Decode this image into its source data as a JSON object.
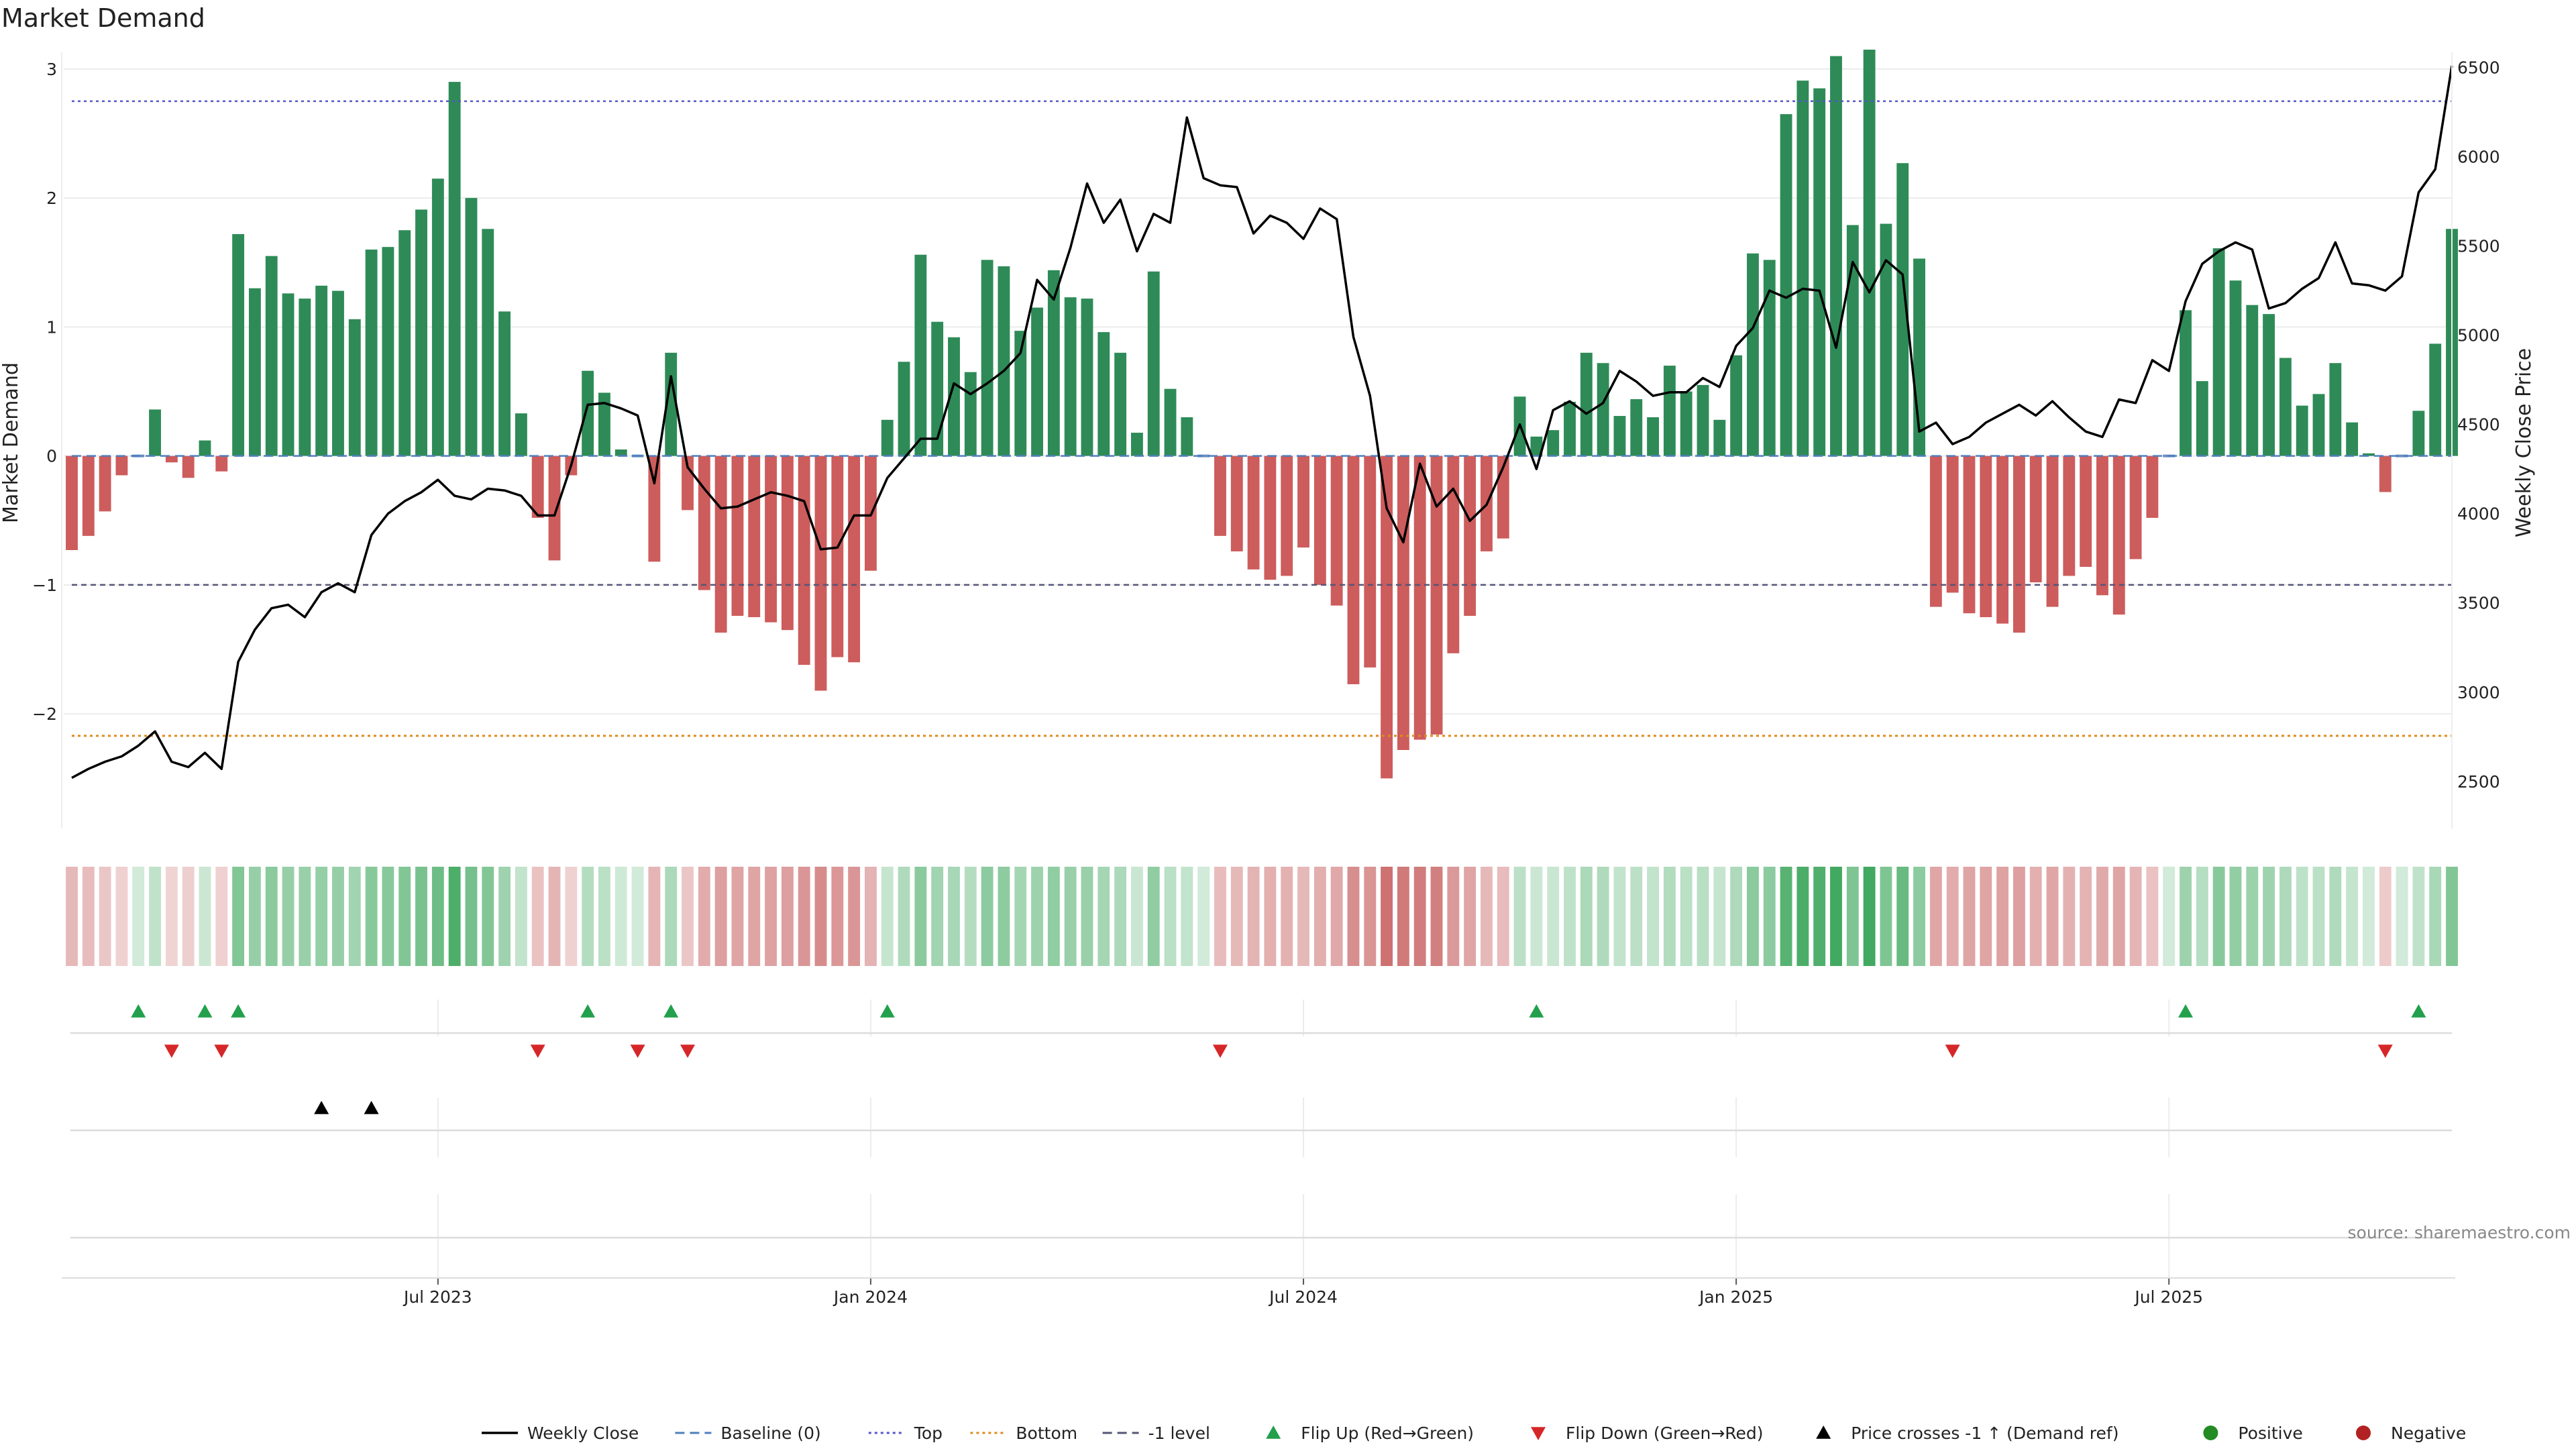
{
  "chart_data": {
    "type": "bar",
    "title": "Market Demand",
    "ylabel_left": "Market Demand",
    "ylabel_right": "Weekly Close Price",
    "ylim_left": [
      -2.8,
      3.15
    ],
    "ylim_right": [
      2300,
      6600
    ],
    "yticks_left": [
      3,
      2,
      1,
      0,
      -1,
      -2
    ],
    "ytick_labels_left": [
      "3",
      "2",
      "1",
      "0",
      "−1",
      "−2"
    ],
    "yticks_right": [
      6500,
      6000,
      5500,
      5000,
      4500,
      4000,
      3500,
      3000,
      2500
    ],
    "ytick_labels_right": [
      "6500",
      "6000",
      "5500",
      "5000",
      "4500",
      "4000",
      "3500",
      "3000",
      "2500"
    ],
    "x_ticks": [
      22,
      48,
      74,
      100,
      126
    ],
    "x_tick_labels": [
      "Jul 2023",
      "Jan 2024",
      "Jul 2024",
      "Jan 2025",
      "Jul 2025"
    ],
    "reference_lines": {
      "top": 2.75,
      "bottom": -2.17,
      "minus_one": -1,
      "baseline": 0
    },
    "demand": [
      -0.73,
      -0.62,
      -0.43,
      -0.15,
      0,
      0.36,
      -0.05,
      -0.17,
      0.12,
      -0.12,
      1.72,
      1.3,
      1.55,
      1.26,
      1.22,
      1.32,
      1.28,
      1.06,
      1.6,
      1.62,
      1.75,
      1.91,
      2.15,
      2.9,
      2.0,
      1.76,
      1.12,
      0.33,
      -0.48,
      -0.81,
      -0.15,
      0.66,
      0.49,
      0.05,
      0.0,
      -0.82,
      0.8,
      -0.42,
      -1.04,
      -1.37,
      -1.24,
      -1.25,
      -1.29,
      -1.35,
      -1.62,
      -1.82,
      -1.56,
      -1.6,
      -0.89,
      0.28,
      0.73,
      1.56,
      1.04,
      0.92,
      0.65,
      1.52,
      1.47,
      0.97,
      1.15,
      1.44,
      1.23,
      1.22,
      0.96,
      0.8,
      0.18,
      1.43,
      0.52,
      0.3,
      0,
      -0.62,
      -0.74,
      -0.88,
      -0.96,
      -0.93,
      -0.71,
      -1.0,
      -1.16,
      -1.77,
      -1.64,
      -2.5,
      -2.28,
      -2.2,
      -2.16,
      -1.53,
      -1.24,
      -0.74,
      -0.64,
      0.46,
      0.15,
      0.2,
      0.42,
      0.8,
      0.72,
      0.31,
      0.44,
      0.3,
      0.7,
      0.5,
      0.55,
      0.28,
      0.78,
      1.57,
      1.52,
      2.65,
      2.91,
      2.85,
      3.1,
      1.79,
      3.15,
      1.8,
      2.27,
      1.53,
      -1.17,
      -1.06,
      -1.22,
      -1.25,
      -1.3,
      -1.37,
      -0.98,
      -1.17,
      -0.93,
      -0.86,
      -1.08,
      -1.23,
      -0.8,
      -0.48,
      0,
      1.13,
      0.58,
      1.61,
      1.36,
      1.17,
      1.1,
      0.76,
      0.39,
      0.48,
      0.72,
      0.26,
      0.02,
      -0.28,
      0,
      0.35,
      0.87,
      1.76
    ],
    "weekly_close": [
      2520,
      2570,
      2610,
      2640,
      2700,
      2780,
      2610,
      2580,
      2660,
      2570,
      3170,
      3350,
      3470,
      3490,
      3420,
      3560,
      3610,
      3560,
      3880,
      4000,
      4070,
      4120,
      4190,
      4100,
      4080,
      4140,
      4130,
      4100,
      3990,
      3990,
      4270,
      4610,
      4620,
      4590,
      4550,
      4170,
      4770,
      4260,
      4140,
      4030,
      4040,
      4080,
      4120,
      4100,
      4070,
      3800,
      3810,
      3990,
      3990,
      4200,
      4310,
      4420,
      4420,
      4730,
      4670,
      4730,
      4800,
      4900,
      5310,
      5200,
      5490,
      5850,
      5630,
      5760,
      5470,
      5680,
      5630,
      6220,
      5880,
      5840,
      5830,
      5570,
      5670,
      5630,
      5540,
      5710,
      5650,
      4990,
      4660,
      4030,
      3840,
      4280,
      4040,
      4140,
      3960,
      4050,
      4260,
      4500,
      4250,
      4580,
      4630,
      4560,
      4620,
      4800,
      4740,
      4660,
      4680,
      4680,
      4760,
      4710,
      4940,
      5040,
      5250,
      5210,
      5260,
      5250,
      4930,
      5410,
      5240,
      5420,
      5340,
      4460,
      4510,
      4390,
      4430,
      4510,
      4560,
      4610,
      4550,
      4630,
      4540,
      4460,
      4430,
      4640,
      4620,
      4860,
      4800,
      5190,
      5400,
      5470,
      5520,
      5480,
      5150,
      5180,
      5260,
      5320,
      5520,
      5290,
      5280,
      5250,
      5330,
      5800,
      5930,
      6510
    ]
  },
  "title": "Market Demand",
  "source": "source: sharemaestro.com",
  "markers": {
    "flip_up_indices": [
      4,
      8,
      10,
      31,
      36,
      49,
      88,
      127,
      141
    ],
    "flip_down_indices": [
      6,
      9,
      28,
      34,
      37,
      69,
      113,
      139
    ],
    "price_cross_indices": [
      15,
      18
    ]
  },
  "legend": [
    {
      "label": "Weekly Close",
      "kind": "line-solid",
      "color": "#000000"
    },
    {
      "label": "Baseline (0)",
      "kind": "line-dash",
      "color": "#4f7fbf"
    },
    {
      "label": "Top",
      "kind": "line-dot",
      "color": "#5555cc"
    },
    {
      "label": "Bottom",
      "kind": "line-dot",
      "color": "#e08a1e"
    },
    {
      "label": "-1 level",
      "kind": "line-dash",
      "color": "#555577"
    },
    {
      "label": "Flip Up (Red→Green)",
      "kind": "tri-up",
      "color": "#22a04b"
    },
    {
      "label": "Flip Down (Green→Red)",
      "kind": "tri-down",
      "color": "#d62728"
    },
    {
      "label": "Price crosses -1 ↑ (Demand ref)",
      "kind": "tri-up",
      "color": "#000000"
    },
    {
      "label": "Positive",
      "kind": "dot",
      "color": "#228b22"
    },
    {
      "label": "Negative",
      "kind": "dot",
      "color": "#b22222"
    }
  ],
  "colors": {
    "positive": "#2e8b57",
    "negative": "#cd5c5c",
    "price": "#000000"
  }
}
